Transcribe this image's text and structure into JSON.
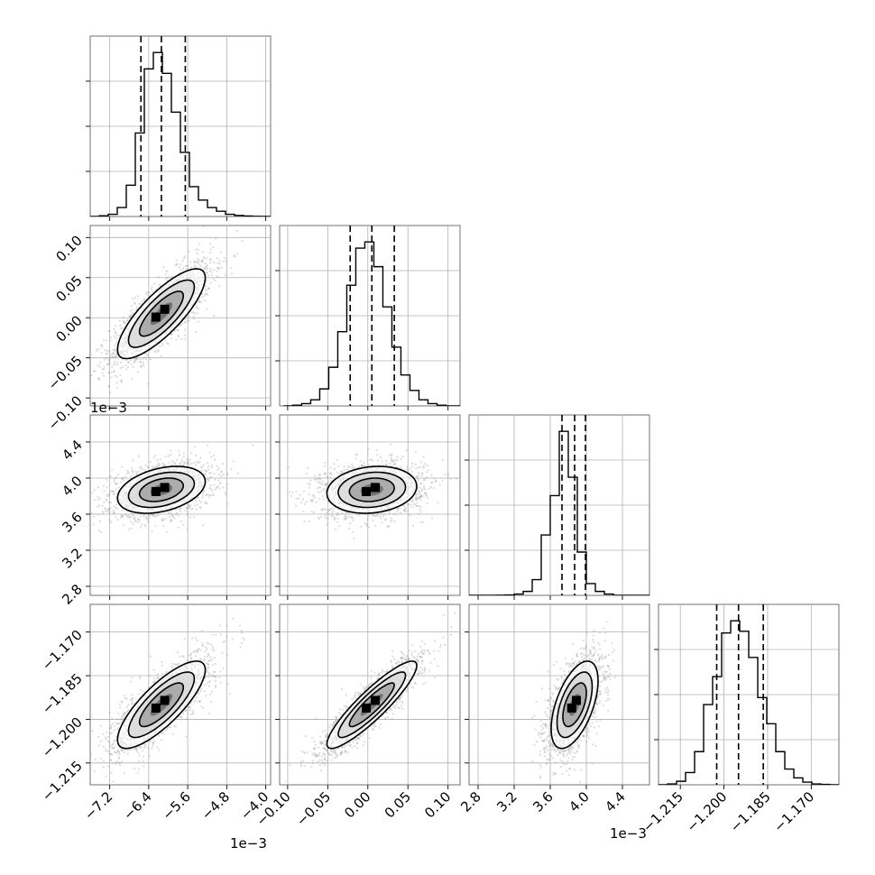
{
  "chart_data": {
    "type": "corner",
    "description_free": true,
    "grid": true,
    "colors": {
      "hist": "#000000",
      "points": "#9a9a9a",
      "contour": "#000000",
      "density_dark": "#000000",
      "density_light": "#e8e8e8"
    },
    "parameters": [
      {
        "range": [
          -7.6,
          -3.9
        ],
        "ticks": [
          -7.2,
          -6.4,
          -5.6,
          -4.8,
          -4.0
        ],
        "tick_labels": [
          "−7.2",
          "−6.4",
          "−5.6",
          "−4.8",
          "−4.0"
        ],
        "offset_label": "1e−3",
        "quantiles": [
          -6.56,
          -6.14,
          -5.65
        ],
        "center": -6.14,
        "sigma": 0.45
      },
      {
        "range": [
          -0.11,
          0.115
        ],
        "ticks": [
          -0.1,
          -0.05,
          0.0,
          0.05,
          0.1
        ],
        "tick_labels": [
          "−0.10",
          "−0.05",
          "0.00",
          "0.05",
          "0.10"
        ],
        "offset_label": "",
        "quantiles": [
          -0.022,
          0.005,
          0.033
        ],
        "center": 0.005,
        "sigma": 0.028
      },
      {
        "range": [
          2.7,
          4.7
        ],
        "ticks": [
          2.8,
          3.2,
          3.6,
          4.0,
          4.4
        ],
        "tick_labels": [
          "2.8",
          "3.2",
          "3.6",
          "4.0",
          "4.4"
        ],
        "offset_label": "1e−3",
        "quantiles": [
          3.73,
          3.87,
          3.99
        ],
        "center": 3.87,
        "sigma": 0.13
      },
      {
        "range": [
          -1.2225,
          -1.1605
        ],
        "ticks": [
          -1.215,
          -1.2,
          -1.185,
          -1.17
        ],
        "tick_labels": [
          "−1.215",
          "−1.200",
          "−1.185",
          "−1.170"
        ],
        "offset_label": "",
        "quantiles": [
          -1.2025,
          -1.195,
          -1.1865
        ],
        "center": -1.195,
        "sigma": 0.0075
      }
    ],
    "histograms": [
      {
        "param": 0,
        "bin_edges_start": -7.6,
        "bin_width": 0.185,
        "counts": [
          0,
          5,
          15,
          60,
          210,
          560,
          990,
          1100,
          960,
          700,
          430,
          200,
          110,
          60,
          35,
          15,
          7,
          3,
          1,
          0
        ]
      },
      {
        "param": 1,
        "bin_edges_start": -0.105,
        "bin_width": 0.01125,
        "counts": [
          0,
          5,
          15,
          40,
          110,
          250,
          480,
          780,
          1020,
          1060,
          900,
          640,
          380,
          200,
          100,
          40,
          15,
          5,
          0,
          0
        ]
      },
      {
        "param": 2,
        "bin_edges_start": 2.7,
        "bin_width": 0.1,
        "counts": [
          0,
          0,
          0,
          1,
          3,
          10,
          30,
          120,
          460,
          760,
          1250,
          900,
          330,
          90,
          30,
          10,
          0,
          0,
          0,
          0
        ]
      },
      {
        "param": 3,
        "bin_edges_start": -1.2225,
        "bin_width": 0.0031,
        "counts": [
          0,
          5,
          20,
          70,
          190,
          460,
          620,
          870,
          940,
          880,
          730,
          500,
          350,
          190,
          90,
          40,
          15,
          5,
          2,
          0
        ]
      }
    ],
    "correlations": {
      "1,0": 0.8,
      "2,0": 0.35,
      "2,1": 0.15,
      "3,0": 0.8,
      "3,1": 0.9,
      "3,2": 0.55
    }
  }
}
